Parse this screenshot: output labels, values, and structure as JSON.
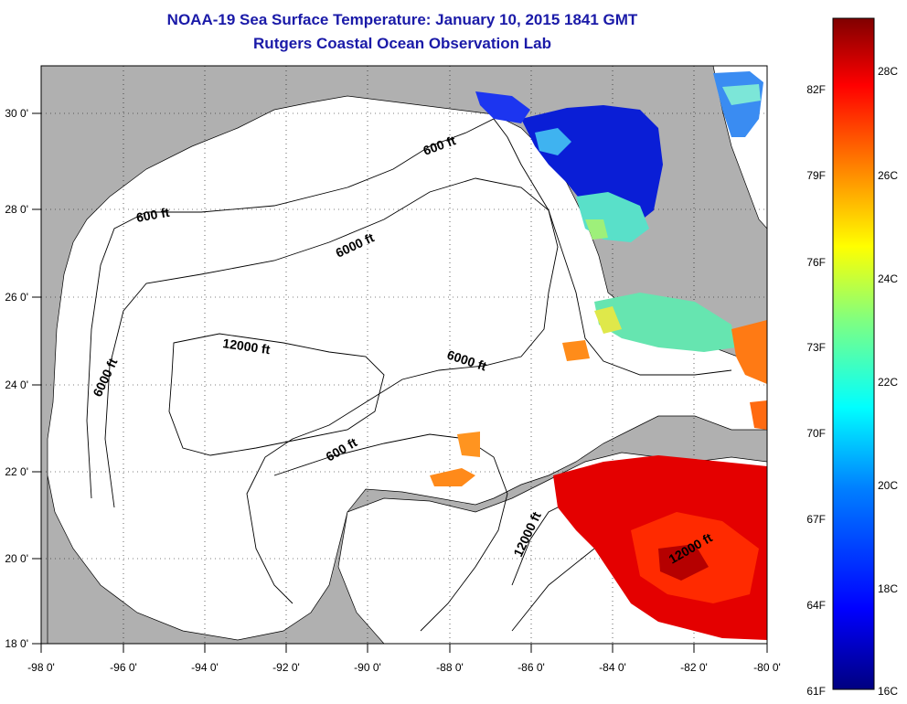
{
  "title": {
    "line1": "NOAA-19 Sea Surface Temperature:  January 10, 2015 1841 GMT",
    "line2": "Rutgers Coastal Ocean Observation Lab"
  },
  "map": {
    "lon_range": [
      -98,
      -80
    ],
    "lat_range": [
      18,
      31
    ],
    "lon_ticks": [
      "-98 0'",
      "-96 0'",
      "-94 0'",
      "-92 0'",
      "-90 0'",
      "-88 0'",
      "-86 0'",
      "-84 0'",
      "-82 0'",
      "-80 0'"
    ],
    "lat_ticks": [
      "18 0'",
      "20 0'",
      "22 0'",
      "24 0'",
      "26 0'",
      "28 0'",
      "30 0'"
    ],
    "land_color": "#b0b0b0",
    "water_color": "#ffffff",
    "grid": "dotted"
  },
  "contour_labels": [
    "600 ft",
    "600 ft",
    "600 ft",
    "6000 ft",
    "6000 ft",
    "6000 ft",
    "12000 ft",
    "12000 ft",
    "12000 ft"
  ],
  "colorbar": {
    "fahrenheit_labels": [
      "82F",
      "79F",
      "76F",
      "73F",
      "70F",
      "67F",
      "64F",
      "61F"
    ],
    "celsius_labels": [
      "28C",
      "26C",
      "24C",
      "22C",
      "20C",
      "18C",
      "16C"
    ],
    "range_c": [
      16,
      29
    ],
    "colors": [
      "#000080",
      "#0000ff",
      "#0080ff",
      "#00ffff",
      "#80ff80",
      "#ffff00",
      "#ff8000",
      "#ff0000",
      "#800000"
    ]
  }
}
